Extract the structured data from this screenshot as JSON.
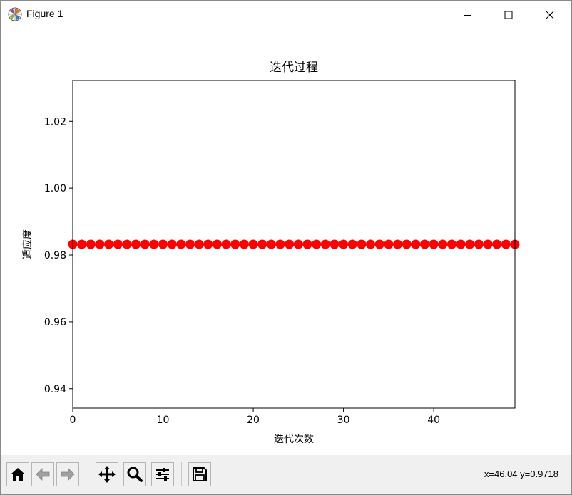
{
  "window": {
    "title": "Figure 1",
    "icon": "matplotlib-logo-icon",
    "controls": [
      "minimize-icon",
      "maximize-icon",
      "close-icon"
    ]
  },
  "chart_data": {
    "type": "scatter",
    "title": "迭代过程",
    "xlabel": "迭代次数",
    "ylabel": "适应度",
    "x": [
      0,
      1,
      2,
      3,
      4,
      5,
      6,
      7,
      8,
      9,
      10,
      11,
      12,
      13,
      14,
      15,
      16,
      17,
      18,
      19,
      20,
      21,
      22,
      23,
      24,
      25,
      26,
      27,
      28,
      29,
      30,
      31,
      32,
      33,
      34,
      35,
      36,
      37,
      38,
      39,
      40,
      41,
      42,
      43,
      44,
      45,
      46,
      47,
      48,
      49
    ],
    "y": [
      0.9832,
      0.9832,
      0.9832,
      0.9832,
      0.9832,
      0.9832,
      0.9832,
      0.9832,
      0.9832,
      0.9832,
      0.9832,
      0.9832,
      0.9832,
      0.9832,
      0.9832,
      0.9832,
      0.9832,
      0.9832,
      0.9832,
      0.9832,
      0.9832,
      0.9832,
      0.9832,
      0.9832,
      0.9832,
      0.9832,
      0.9832,
      0.9832,
      0.9832,
      0.9832,
      0.9832,
      0.9832,
      0.9832,
      0.9832,
      0.9832,
      0.9832,
      0.9832,
      0.9832,
      0.9832,
      0.9832,
      0.9832,
      0.9832,
      0.9832,
      0.9832,
      0.9832,
      0.9832,
      0.9832,
      0.9832,
      0.9832,
      0.9832
    ],
    "xlim": [
      0,
      49
    ],
    "ylim": [
      0.9342,
      1.0322
    ],
    "xticks": [
      0,
      10,
      20,
      30,
      40
    ],
    "xtick_labels": [
      "0",
      "10",
      "20",
      "30",
      "40"
    ],
    "yticks": [
      0.94,
      0.96,
      0.98,
      1.0,
      1.02
    ],
    "ytick_labels": [
      "0.94",
      "0.96",
      "0.98",
      "1.00",
      "1.02"
    ],
    "marker_color": "#ff0000",
    "grid": false,
    "legend": "none"
  },
  "toolbar": {
    "buttons": [
      {
        "name": "home-button",
        "icon": "home-icon"
      },
      {
        "name": "back-button",
        "icon": "arrow-left-icon"
      },
      {
        "name": "forward-button",
        "icon": "arrow-right-icon"
      },
      {
        "name": "pan-button",
        "icon": "move-icon"
      },
      {
        "name": "zoom-button",
        "icon": "magnifier-icon"
      },
      {
        "name": "configure-subplots-button",
        "icon": "sliders-icon"
      },
      {
        "name": "save-button",
        "icon": "floppy-disk-icon"
      }
    ],
    "coords_text": "x=46.04 y=0.9718"
  }
}
